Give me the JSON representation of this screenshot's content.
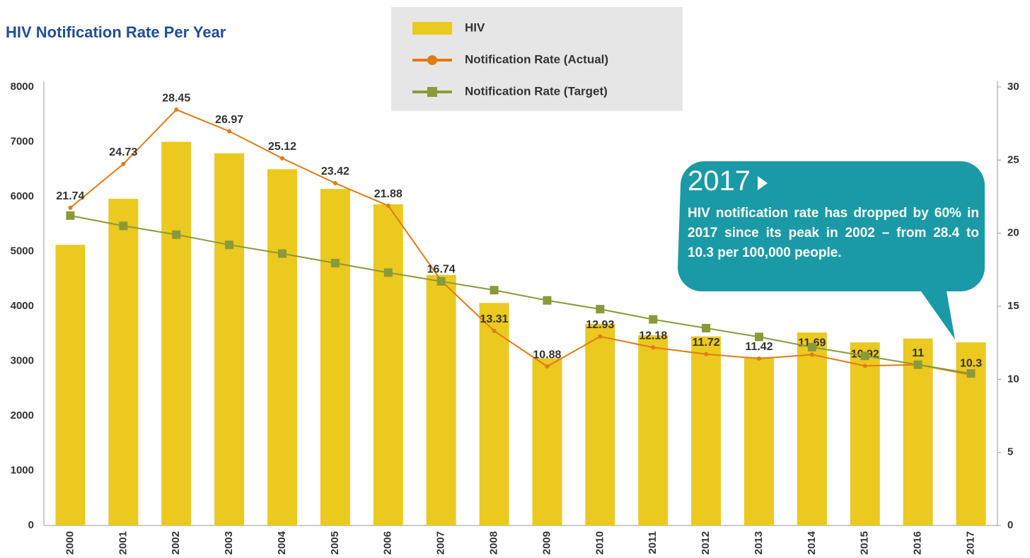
{
  "chart_data": {
    "type": "bar",
    "title": "HIV Notification Rate Per Year",
    "categories": [
      "2000",
      "2001",
      "2002",
      "2003",
      "2004",
      "2005",
      "2006",
      "2007",
      "2008",
      "2009",
      "2010",
      "2011",
      "2012",
      "2013",
      "2014",
      "2015",
      "2016",
      "2017"
    ],
    "series": [
      {
        "name": "HIV",
        "type": "bar",
        "color": "#ebc91e",
        "axis": "y",
        "values": [
          5120,
          5960,
          7000,
          6790,
          6500,
          6140,
          5860,
          4570,
          4060,
          3050,
          3680,
          3470,
          3450,
          3070,
          3520,
          3340,
          3410,
          3340
        ]
      },
      {
        "name": "Notification Rate (Actual)",
        "type": "line",
        "marker": "circle",
        "color": "#e07b14",
        "axis": "y2",
        "show_labels": true,
        "values": [
          21.74,
          24.73,
          28.45,
          26.97,
          25.12,
          23.42,
          21.88,
          16.74,
          13.31,
          10.88,
          12.93,
          12.18,
          11.72,
          11.42,
          11.69,
          10.92,
          11,
          10.3
        ]
      },
      {
        "name": "Notification Rate (Target)",
        "type": "line",
        "marker": "square",
        "color": "#8a9a3a",
        "axis": "y2",
        "show_labels": false,
        "values": [
          21.2,
          20.5,
          19.9,
          19.2,
          18.6,
          17.95,
          17.3,
          16.7,
          16.1,
          15.4,
          14.8,
          14.1,
          13.5,
          12.9,
          12.2,
          11.6,
          11.0,
          10.4
        ]
      }
    ],
    "ylim": [
      0,
      8000
    ],
    "yticks": [
      0,
      1000,
      2000,
      3000,
      4000,
      5000,
      6000,
      7000,
      8000
    ],
    "y2lim": [
      0,
      30
    ],
    "y2ticks": [
      0,
      5,
      10,
      15,
      20,
      25,
      30
    ],
    "grid": false,
    "legend": "top",
    "annotation": {
      "title": "2017",
      "text": "HIV notification rate has dropped by 60% in 2017 since its peak in 2002 – from 28.4 to 10.3 per 100,000 people."
    }
  }
}
